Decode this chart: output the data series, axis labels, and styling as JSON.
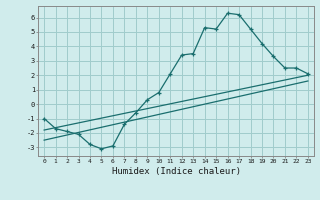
{
  "xlabel": "Humidex (Indice chaleur)",
  "bg_color": "#d0ecec",
  "grid_color": "#a0cccc",
  "line_color": "#1a6e6e",
  "x_ticks": [
    0,
    1,
    2,
    3,
    4,
    5,
    6,
    7,
    8,
    9,
    10,
    11,
    12,
    13,
    14,
    15,
    16,
    17,
    18,
    19,
    20,
    21,
    22,
    23
  ],
  "y_ticks": [
    -3,
    -2,
    -1,
    0,
    1,
    2,
    3,
    4,
    5,
    6
  ],
  "ylim": [
    -3.6,
    6.8
  ],
  "xlim": [
    -0.5,
    23.5
  ],
  "series1_x": [
    0,
    1,
    2,
    3,
    4,
    5,
    6,
    7,
    8,
    9,
    10,
    11,
    12,
    13,
    14,
    15,
    16,
    17,
    18,
    19,
    20,
    21,
    22,
    23
  ],
  "series1_y": [
    -1.0,
    -1.7,
    -1.9,
    -2.1,
    -2.8,
    -3.1,
    -2.9,
    -1.4,
    -0.6,
    0.3,
    0.8,
    2.1,
    3.4,
    3.5,
    5.3,
    5.2,
    6.3,
    6.2,
    5.2,
    4.2,
    3.3,
    2.5,
    2.5,
    2.1
  ],
  "series2_x": [
    0,
    23
  ],
  "series2_y": [
    -1.8,
    2.0
  ],
  "series3_x": [
    0,
    23
  ],
  "series3_y": [
    -2.5,
    1.6
  ],
  "marker": "+"
}
